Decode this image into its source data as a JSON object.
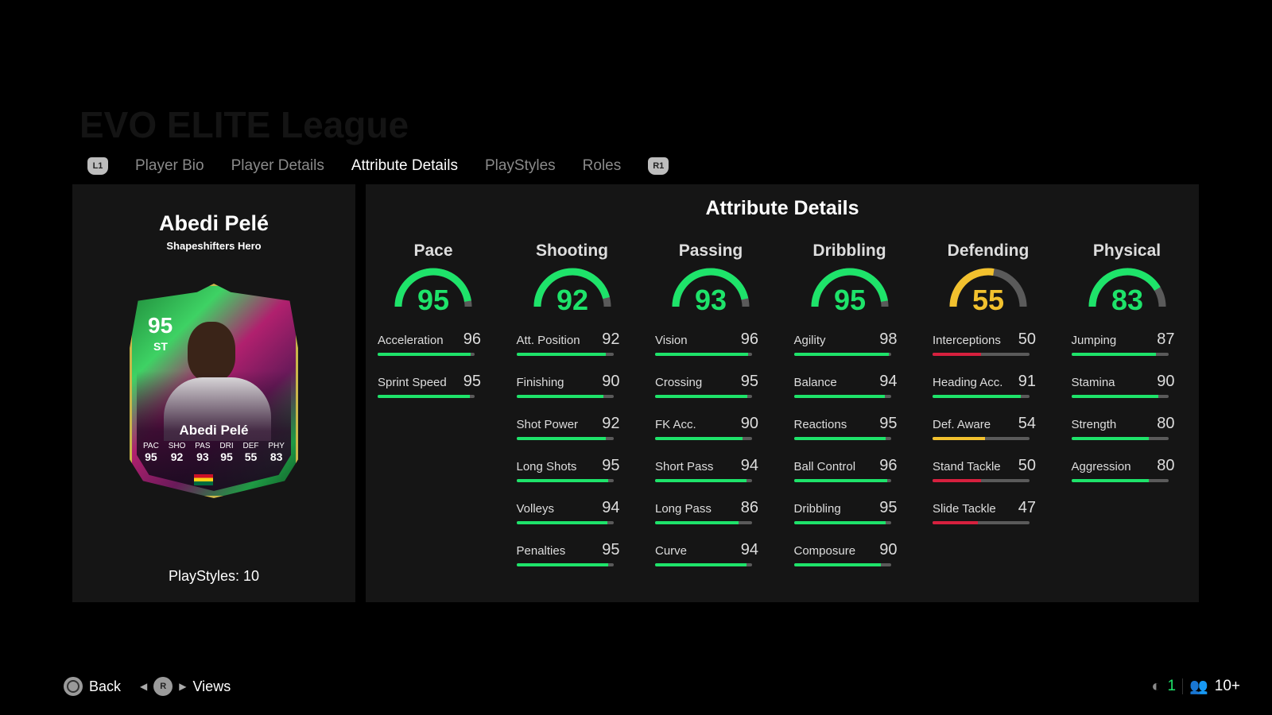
{
  "background_title": "EVO ELITE League",
  "tabs": {
    "left_button": "L1",
    "right_button": "R1",
    "items": [
      "Player Bio",
      "Player Details",
      "Attribute Details",
      "PlayStyles",
      "Roles"
    ],
    "active": "Attribute Details"
  },
  "player": {
    "name": "Abedi Pelé",
    "subtitle": "Shapeshifters Hero",
    "playstyles": "PlayStyles: 10",
    "card": {
      "rating": "95",
      "position": "ST",
      "name": "Abedi Pelé",
      "stats": [
        {
          "label": "PAC",
          "value": "95"
        },
        {
          "label": "SHO",
          "value": "92"
        },
        {
          "label": "PAS",
          "value": "93"
        },
        {
          "label": "DRI",
          "value": "95"
        },
        {
          "label": "DEF",
          "value": "55"
        },
        {
          "label": "PHY",
          "value": "83"
        }
      ]
    }
  },
  "panel_title": "Attribute Details",
  "colors": {
    "green": "#1ee36a",
    "yellow": "#f2c12e",
    "red": "#d6203e",
    "track": "#5a5a5a"
  },
  "categories": [
    {
      "name": "Pace",
      "value": 95,
      "attrs": [
        {
          "name": "Acceleration",
          "value": 96
        },
        {
          "name": "Sprint Speed",
          "value": 95
        }
      ]
    },
    {
      "name": "Shooting",
      "value": 92,
      "attrs": [
        {
          "name": "Att. Position",
          "value": 92
        },
        {
          "name": "Finishing",
          "value": 90
        },
        {
          "name": "Shot Power",
          "value": 92
        },
        {
          "name": "Long Shots",
          "value": 95
        },
        {
          "name": "Volleys",
          "value": 94
        },
        {
          "name": "Penalties",
          "value": 95
        }
      ]
    },
    {
      "name": "Passing",
      "value": 93,
      "attrs": [
        {
          "name": "Vision",
          "value": 96
        },
        {
          "name": "Crossing",
          "value": 95
        },
        {
          "name": "FK Acc.",
          "value": 90
        },
        {
          "name": "Short Pass",
          "value": 94
        },
        {
          "name": "Long Pass",
          "value": 86
        },
        {
          "name": "Curve",
          "value": 94
        }
      ]
    },
    {
      "name": "Dribbling",
      "value": 95,
      "attrs": [
        {
          "name": "Agility",
          "value": 98
        },
        {
          "name": "Balance",
          "value": 94
        },
        {
          "name": "Reactions",
          "value": 95
        },
        {
          "name": "Ball Control",
          "value": 96
        },
        {
          "name": "Dribbling",
          "value": 95
        },
        {
          "name": "Composure",
          "value": 90
        }
      ]
    },
    {
      "name": "Defending",
      "value": 55,
      "attrs": [
        {
          "name": "Interceptions",
          "value": 50
        },
        {
          "name": "Heading Acc.",
          "value": 91
        },
        {
          "name": "Def. Aware",
          "value": 54
        },
        {
          "name": "Stand Tackle",
          "value": 50
        },
        {
          "name": "Slide Tackle",
          "value": 47
        }
      ]
    },
    {
      "name": "Physical",
      "value": 83,
      "attrs": [
        {
          "name": "Jumping",
          "value": 87
        },
        {
          "name": "Stamina",
          "value": 90
        },
        {
          "name": "Strength",
          "value": 80
        },
        {
          "name": "Aggression",
          "value": 80
        }
      ]
    }
  ],
  "footer": {
    "back": "Back",
    "views_button": "R",
    "views": "Views",
    "notifications": "1",
    "friends": "10+"
  }
}
